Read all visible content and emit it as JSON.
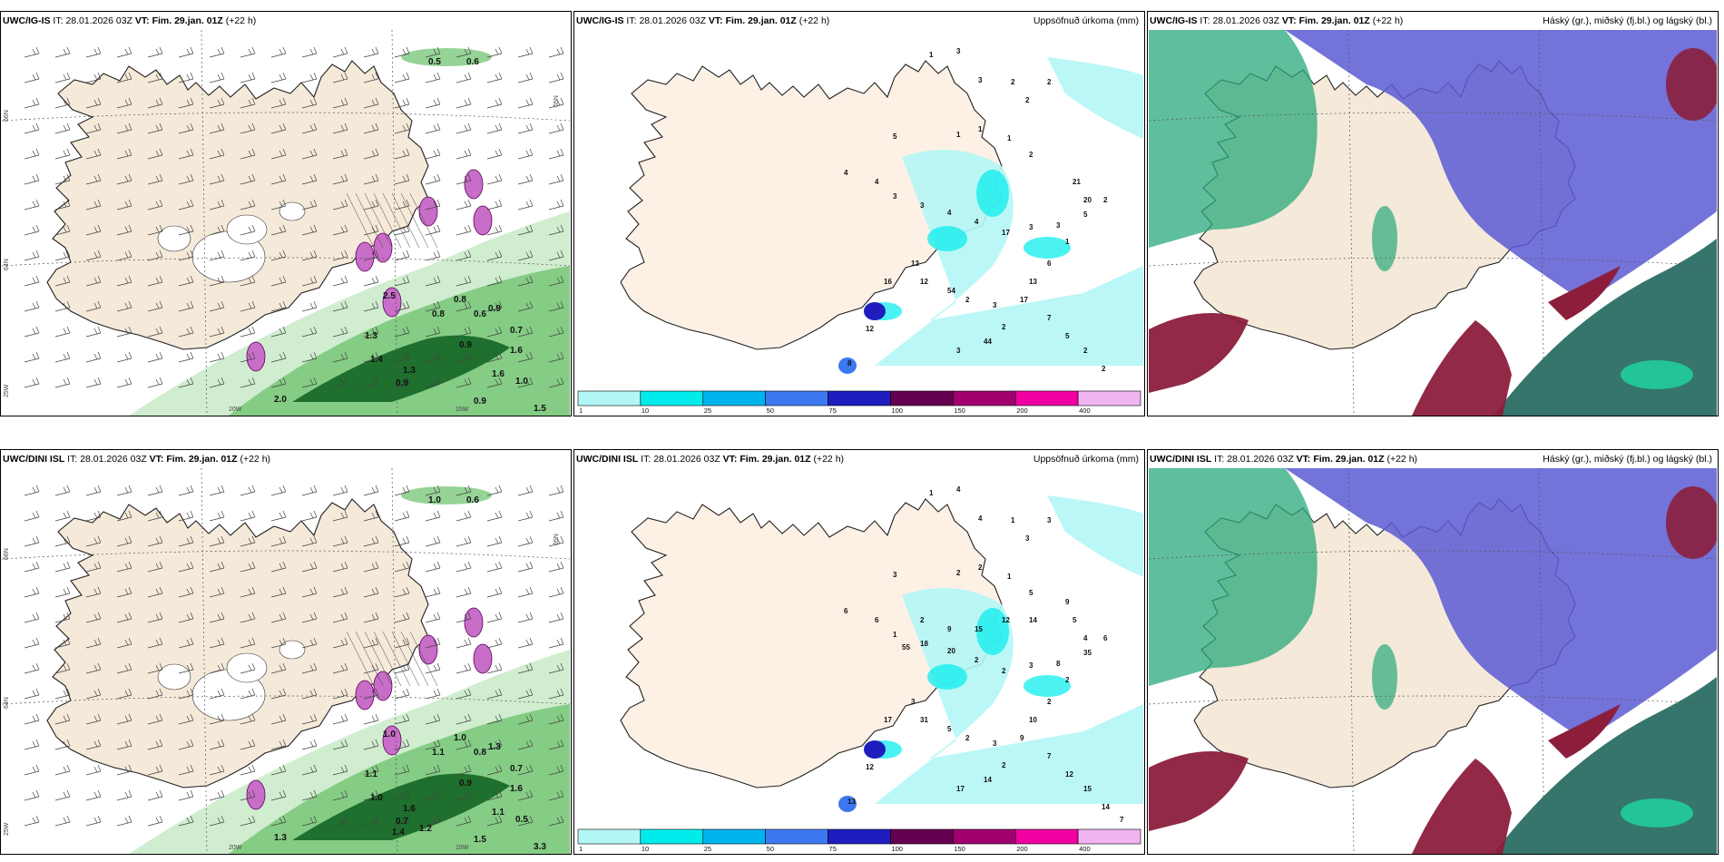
{
  "panels": [
    {
      "model": "UWC/IG-IS",
      "it_label": "IT:",
      "it_value": "28.01.2026 03Z",
      "vt_label": "VT:",
      "vt_value": "Fim. 29.jan. 01Z",
      "lead": "(+22 h)",
      "title_right": "",
      "kind": "wind",
      "grid_labels": [
        "66N",
        "64N",
        "25W",
        "20W",
        "15W",
        "65N"
      ],
      "values": [
        "0.5",
        "0.6",
        "0.6",
        "0.7",
        "0.8",
        "0.9",
        "1.0",
        "2.5",
        "1.3",
        "1.4",
        "1.3",
        "2.0",
        "1.6",
        "0.9",
        "0.9",
        "0.8",
        "0.9",
        "1.6",
        "1.5"
      ]
    },
    {
      "model": "UWC/IG-IS",
      "it_label": "IT:",
      "it_value": "28.01.2026 03Z",
      "vt_label": "VT:",
      "vt_value": "Fim. 29.jan. 01Z",
      "lead": "(+22 h)",
      "title_right": "Uppsöfnuð úrkoma (mm)",
      "kind": "precip",
      "values": [
        "1",
        "3",
        "3",
        "2",
        "2",
        "2",
        "1",
        "1",
        "1",
        "2",
        "5",
        "4",
        "4",
        "3",
        "3",
        "4",
        "4",
        "17",
        "3",
        "3",
        "21",
        "20",
        "2",
        "5",
        "1",
        "6",
        "13",
        "17",
        "2",
        "44",
        "3",
        "8",
        "12",
        "16",
        "13",
        "12",
        "54",
        "2",
        "3",
        "7",
        "5",
        "2",
        "2"
      ],
      "legend_ticks": [
        "1",
        "10",
        "25",
        "50",
        "75",
        "100",
        "150",
        "200",
        "400"
      ],
      "legend_colors": [
        "#b4f6f6",
        "#00ecec",
        "#00b4ec",
        "#3c78f0",
        "#1e1ebe",
        "#640050",
        "#a0006e",
        "#f000a0",
        "#f0b4f0"
      ]
    },
    {
      "model": "UWC/IG-IS",
      "it_label": "IT:",
      "it_value": "28.01.2026 03Z",
      "vt_label": "VT:",
      "vt_value": "Fim. 29.jan. 01Z",
      "lead": "(+22 h)",
      "title_right": "Háský (gr.), miðský (fj.bl.) og lágský (bl.)",
      "kind": "cloud"
    },
    {
      "model": "UWC/DINI ISL",
      "it_label": "IT:",
      "it_value": "28.01.2026 03Z",
      "vt_label": "VT:",
      "vt_value": "Fim. 29.jan. 01Z",
      "lead": "(+22 h)",
      "title_right": "",
      "kind": "wind",
      "grid_labels": [
        "66N",
        "64N",
        "25W",
        "20W",
        "15W",
        "65N"
      ],
      "values": [
        "1.0",
        "0.6",
        "0.8",
        "0.7",
        "1.0",
        "1.3",
        "0.5",
        "1.0",
        "1.1",
        "1.0",
        "1.6",
        "1.3",
        "1.6",
        "1.5",
        "0.7",
        "1.1",
        "0.9",
        "1.1",
        "3.3",
        "1.2",
        "1.4"
      ]
    },
    {
      "model": "UWC/DINI ISL",
      "it_label": "IT:",
      "it_value": "28.01.2026 03Z",
      "vt_label": "VT:",
      "vt_value": "Fim. 29.jan. 01Z",
      "lead": "(+22 h)",
      "title_right": "Uppsöfnuð úrkoma (mm)",
      "kind": "precip",
      "values": [
        "1",
        "4",
        "4",
        "1",
        "3",
        "3",
        "2",
        "2",
        "1",
        "5",
        "3",
        "6",
        "6",
        "1",
        "18",
        "20",
        "2",
        "2",
        "3",
        "8",
        "5",
        "4",
        "6",
        "35",
        "2",
        "2",
        "10",
        "9",
        "2",
        "14",
        "17",
        "13",
        "12",
        "17",
        "3",
        "31",
        "5",
        "2",
        "3",
        "7",
        "12",
        "15",
        "14",
        "7",
        "9",
        "14",
        "12",
        "15",
        "9",
        "2",
        "55"
      ],
      "legend_ticks": [
        "1",
        "10",
        "25",
        "50",
        "75",
        "100",
        "150",
        "200",
        "400"
      ],
      "legend_colors": [
        "#b4f6f6",
        "#00ecec",
        "#00b4ec",
        "#3c78f0",
        "#1e1ebe",
        "#640050",
        "#a0006e",
        "#f000a0",
        "#f0b4f0"
      ]
    },
    {
      "model": "UWC/DINI ISL",
      "it_label": "IT:",
      "it_value": "28.01.2026 03Z",
      "vt_label": "VT:",
      "vt_value": "Fim. 29.jan. 01Z",
      "lead": "(+22 h)",
      "title_right": "Háský (gr.), miðský (fj.bl.) og lágský (bl.)",
      "kind": "cloud"
    }
  ],
  "colors": {
    "land": "#f5e9d9",
    "land_precip": "#fdf1e6",
    "snow": "#ffffff",
    "green_light": "#cdeccd",
    "green_mid": "#7cc87c",
    "green_dark": "#1f6f2e",
    "magenta": "#c86ec8",
    "cyan_light": "#b4f6f6",
    "cloud_high_green": "#2aa87a",
    "cloud_mid_blue": "#5a5ad2",
    "cloud_low_red": "#8c1e3c",
    "cloud_teal": "#2a6e64"
  }
}
